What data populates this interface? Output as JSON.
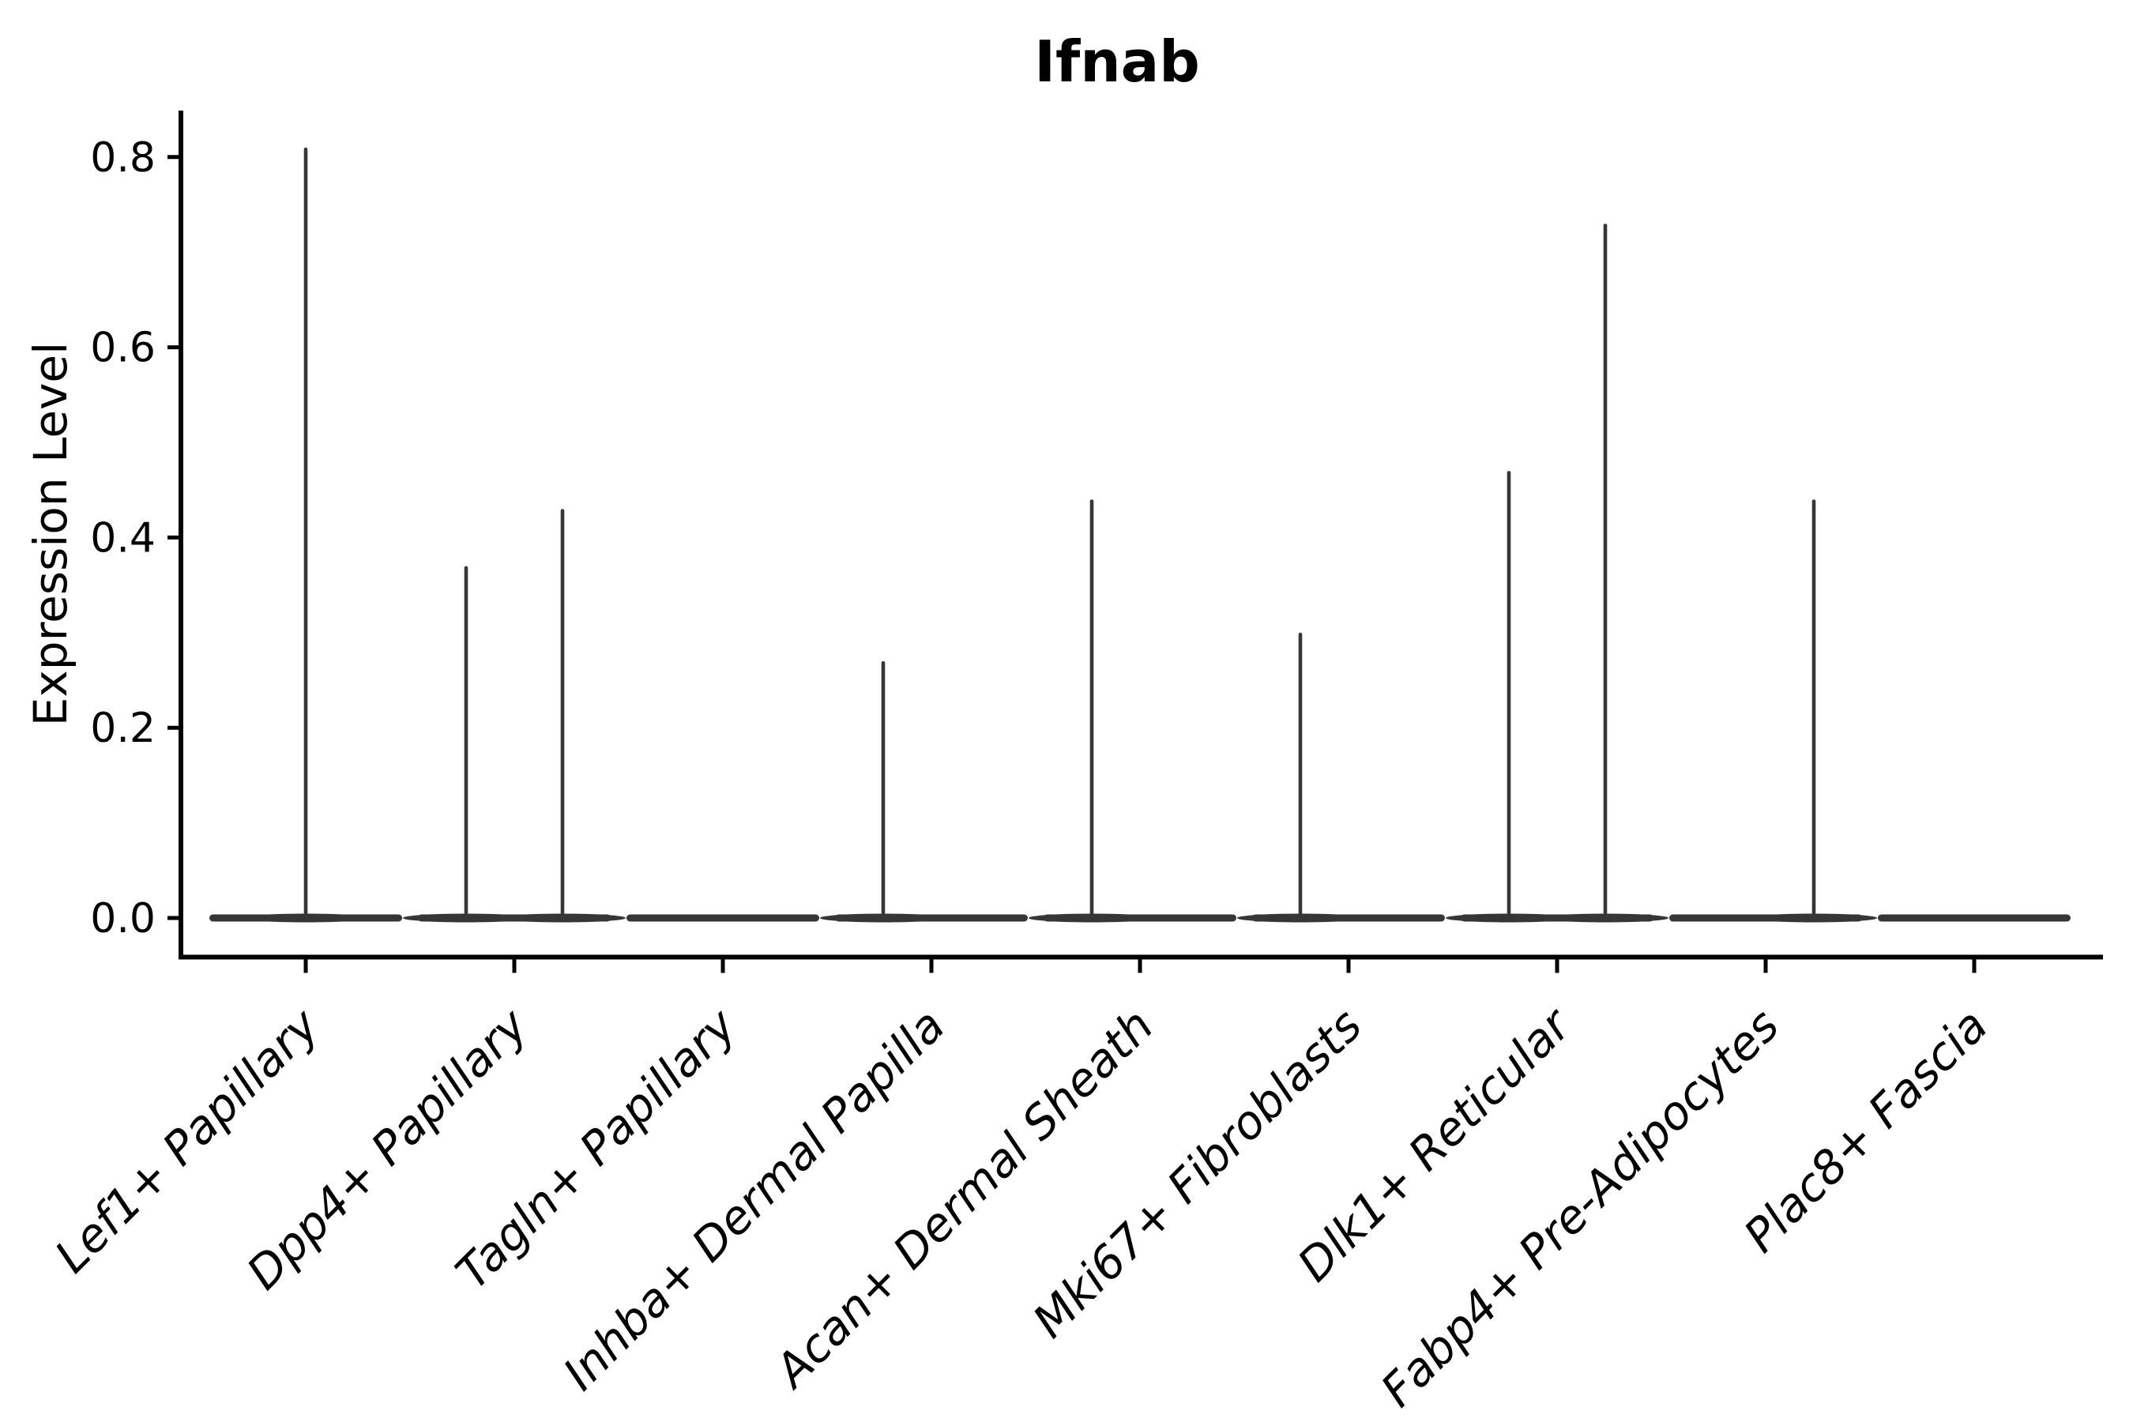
{
  "title": "Ifnab",
  "chart_data": {
    "type": "violin",
    "title": "Ifnab",
    "xlabel": "",
    "ylabel": "Expression Level",
    "ylim": [
      -0.04,
      0.85
    ],
    "y_ticks": [
      0.8,
      0.6,
      0.4,
      0.2,
      0.0
    ],
    "y_tick_labels": [
      "0.8",
      "0.6",
      "0.4",
      "0.2",
      "0.0"
    ],
    "grid": false,
    "legend": "none",
    "violin_color": "#363636",
    "axis_color": "#000000",
    "categories": [
      {
        "label": "Lef1+ Papillary",
        "spikes": [
          {
            "position": "center",
            "max": 0.81
          }
        ]
      },
      {
        "label": "Dpp4+ Papillary",
        "spikes": [
          {
            "position": "left",
            "max": 0.37
          },
          {
            "position": "right",
            "max": 0.43
          }
        ]
      },
      {
        "label": "Tagln+ Papillary",
        "spikes": []
      },
      {
        "label": "Inhba+ Dermal Papilla",
        "spikes": [
          {
            "position": "left",
            "max": 0.27
          }
        ]
      },
      {
        "label": "Acan+ Dermal Sheath",
        "spikes": [
          {
            "position": "left",
            "max": 0.44
          }
        ]
      },
      {
        "label": "Mki67+ Fibroblasts",
        "spikes": [
          {
            "position": "left",
            "max": 0.3
          }
        ]
      },
      {
        "label": "Dlk1+ Reticular",
        "spikes": [
          {
            "position": "left",
            "max": 0.47
          },
          {
            "position": "right",
            "max": 0.73
          }
        ]
      },
      {
        "label": "Fabp4+ Pre-Adipocytes",
        "spikes": [
          {
            "position": "right",
            "max": 0.44
          }
        ]
      },
      {
        "label": "Plac8+ Fascia",
        "spikes": []
      }
    ]
  }
}
